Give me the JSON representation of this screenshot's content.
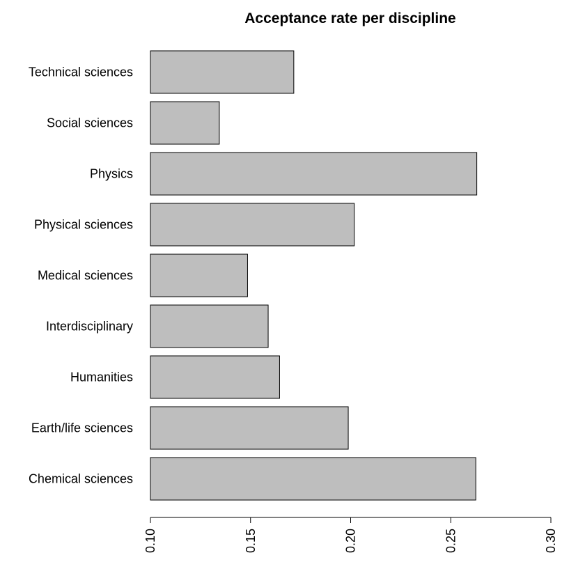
{
  "chart_data": {
    "type": "bar",
    "orientation": "horizontal",
    "title": "Acceptance rate per discipline",
    "xlabel": "",
    "ylabel": "",
    "categories": [
      "Chemical sciences",
      "Earth/life sciences",
      "Humanities",
      "Interdisciplinary",
      "Medical sciences",
      "Physical sciences",
      "Physics",
      "Social sciences",
      "Technical sciences"
    ],
    "values": [
      0.2625,
      0.1988,
      0.1645,
      0.1588,
      0.1485,
      0.2018,
      0.263,
      0.1344,
      0.1716
    ],
    "xlim": [
      0.1,
      0.3
    ],
    "xticks": [
      "0.10",
      "0.15",
      "0.20",
      "0.25",
      "0.30"
    ],
    "tick_values": [
      0.1,
      0.15,
      0.2,
      0.25,
      0.3
    ],
    "grid": false,
    "legend": "none",
    "bar_color": "#bebebe",
    "bar_edge_color": "#000000"
  }
}
